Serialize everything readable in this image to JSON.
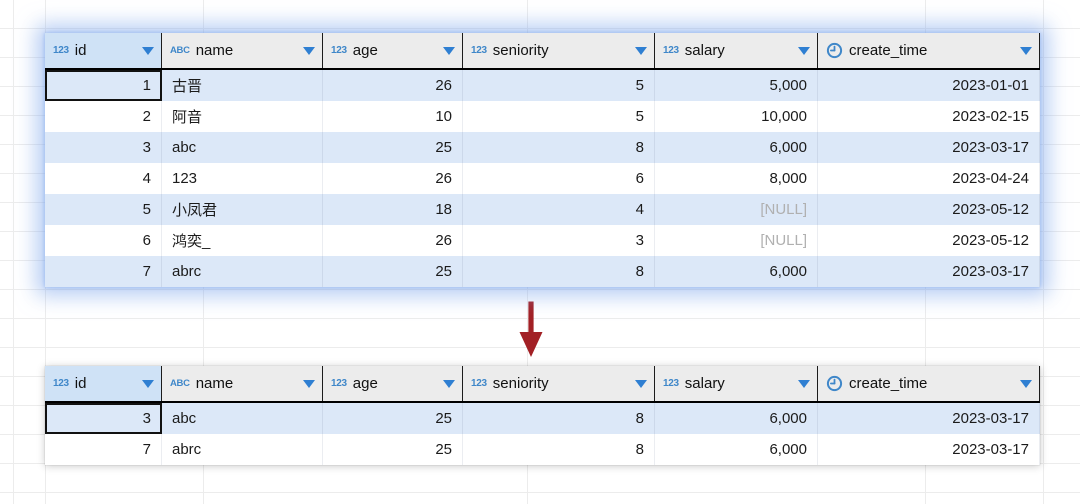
{
  "colors": {
    "accent_blue": "#3f87c9",
    "dropdown_blue": "#2f7fd2",
    "header_bg": "#ececec",
    "header_selected_bg": "#cfe2f6",
    "row_bg": "#ffffff",
    "row_alt_bg": "#dce8f8",
    "cell_text": "#1b1b1b",
    "null_text": "#b0b0b0",
    "selection_border": "#111111",
    "arrow_red": "#a22025",
    "grid_line": "#ececec"
  },
  "null_token": "[NULL]",
  "columns": [
    {
      "key": "id",
      "label": "id",
      "type": "numeric",
      "align": "right",
      "selected": true
    },
    {
      "key": "name",
      "label": "name",
      "type": "text",
      "align": "left",
      "selected": false
    },
    {
      "key": "age",
      "label": "age",
      "type": "numeric",
      "align": "right",
      "selected": false
    },
    {
      "key": "seniority",
      "label": "seniority",
      "type": "numeric",
      "align": "right",
      "selected": false
    },
    {
      "key": "salary",
      "label": "salary",
      "type": "numeric",
      "align": "right",
      "selected": false
    },
    {
      "key": "create_time",
      "label": "create_time",
      "type": "datetime",
      "align": "right",
      "selected": false
    }
  ],
  "type_icons": {
    "numeric_glyph": "123",
    "text_glyph": "ABC",
    "datetime_glyph": "clock"
  },
  "table_full": {
    "rows": [
      [
        "1",
        "古晋",
        "26",
        "5",
        "5,000",
        "2023-01-01"
      ],
      [
        "2",
        "阿音",
        "10",
        "5",
        "10,000",
        "2023-02-15"
      ],
      [
        "3",
        "abc",
        "25",
        "8",
        "6,000",
        "2023-03-17"
      ],
      [
        "4",
        "123",
        "26",
        "6",
        "8,000",
        "2023-04-24"
      ],
      [
        "5",
        "小凤君",
        "18",
        "4",
        "[NULL]",
        "2023-05-12"
      ],
      [
        "6",
        "鸿奕_",
        "26",
        "3",
        "[NULL]",
        "2023-05-12"
      ],
      [
        "7",
        "abrc",
        "25",
        "8",
        "6,000",
        "2023-03-17"
      ]
    ],
    "selected_cell": {
      "row": 0,
      "col": 0
    }
  },
  "table_filtered": {
    "rows": [
      [
        "3",
        "abc",
        "25",
        "8",
        "6,000",
        "2023-03-17"
      ],
      [
        "7",
        "abrc",
        "25",
        "8",
        "6,000",
        "2023-03-17"
      ]
    ],
    "selected_cell": {
      "row": 0,
      "col": 0
    }
  }
}
